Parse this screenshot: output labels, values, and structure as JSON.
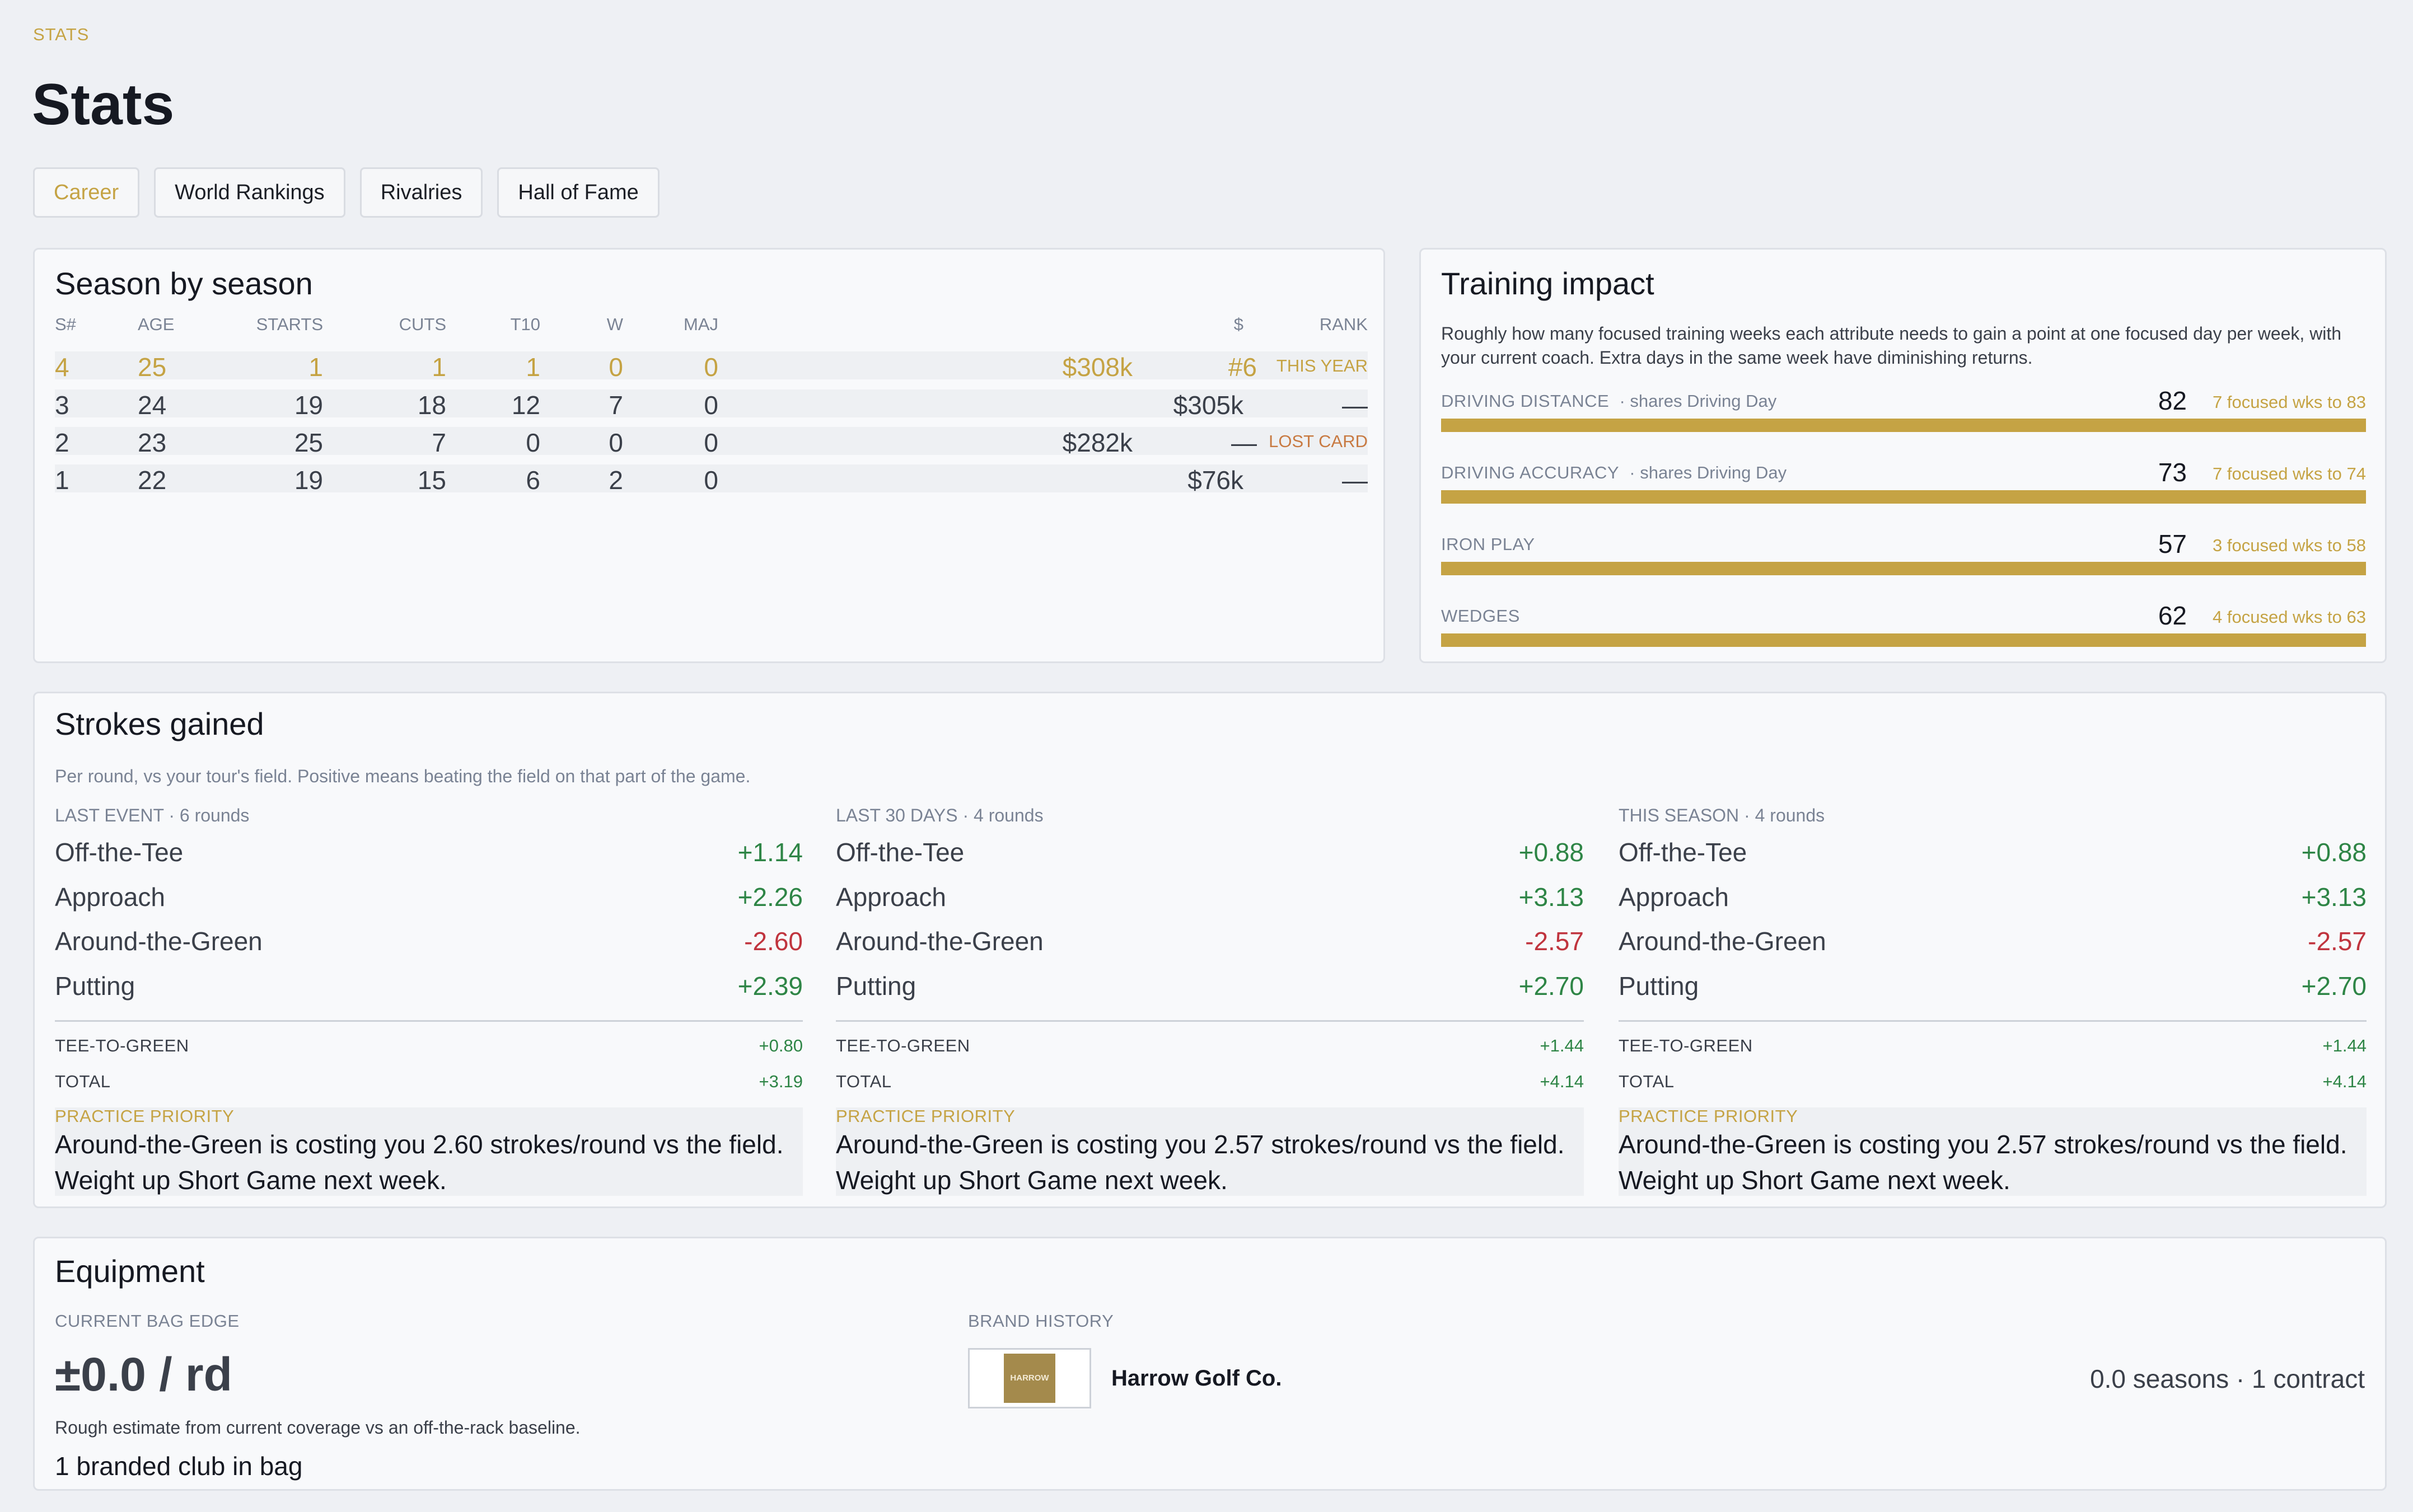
{
  "eyebrow": "STATS",
  "page_title": "Stats",
  "tabs": [
    {
      "label": "Career",
      "active": true
    },
    {
      "label": "World Rankings"
    },
    {
      "label": "Rivalries"
    },
    {
      "label": "Hall of Fame"
    }
  ],
  "season": {
    "title": "Season by season",
    "columns": {
      "season": "S#",
      "age": "AGE",
      "starts": "STARTS",
      "cuts": "CUTS",
      "t10": "T10",
      "w": "W",
      "maj": "MAJ",
      "money": "$",
      "rank": "RANK"
    },
    "rows": [
      {
        "season": "4",
        "age": "25",
        "starts": "1",
        "cuts": "1",
        "t10": "1",
        "w": "0",
        "maj": "0",
        "money": "$308k",
        "rank": "#6",
        "tag": "THIS YEAR"
      },
      {
        "season": "3",
        "age": "24",
        "starts": "19",
        "cuts": "18",
        "t10": "12",
        "w": "7",
        "maj": "0",
        "money": "$305k",
        "rank": "—",
        "tag": ""
      },
      {
        "season": "2",
        "age": "23",
        "starts": "25",
        "cuts": "7",
        "t10": "0",
        "w": "0",
        "maj": "0",
        "money": "$282k",
        "rank": "—",
        "tag": "LOST CARD"
      },
      {
        "season": "1",
        "age": "22",
        "starts": "19",
        "cuts": "15",
        "t10": "6",
        "w": "2",
        "maj": "0",
        "money": "$76k",
        "rank": "—",
        "tag": ""
      }
    ]
  },
  "training": {
    "title": "Training impact",
    "description": "Roughly how many focused training weeks each attribute needs to gain a point at one focused day per week, with your current coach. Extra days in the same week have diminishing returns.",
    "attributes": [
      {
        "name": "DRIVING DISTANCE",
        "share": "·  shares Driving Day",
        "value": "82",
        "note": "7 focused wks to 83",
        "fill": 1.0
      },
      {
        "name": "DRIVING ACCURACY",
        "share": "·  shares Driving Day",
        "value": "73",
        "note": "7 focused wks to 74",
        "fill": 1.0
      },
      {
        "name": "IRON PLAY",
        "share": "",
        "value": "57",
        "note": "3 focused wks to 58",
        "fill": 1.0
      },
      {
        "name": "WEDGES",
        "share": "",
        "value": "62",
        "note": "4 focused wks to 63",
        "fill": 1.0
      }
    ]
  },
  "strokes": {
    "title": "Strokes gained",
    "description": "Per round, vs your tour's field. Positive means beating the field on that part of the game.",
    "labels": {
      "ott": "Off-the-Tee",
      "app": "Approach",
      "arg": "Around-the-Green",
      "putt": "Putting",
      "t2g": "TEE-TO-GREEN",
      "total": "TOTAL",
      "priority": "PRACTICE PRIORITY"
    },
    "columns": [
      {
        "period": "LAST EVENT · 6 rounds",
        "ott": "+1.14",
        "app": "+2.26",
        "arg": "-2.60",
        "putt": "+2.39",
        "t2g": "+0.80",
        "total": "+3.19",
        "priority_text": "Around-the-Green is costing you 2.60 strokes/round vs the field. Weight up Short Game next week."
      },
      {
        "period": "LAST 30 DAYS · 4 rounds",
        "ott": "+0.88",
        "app": "+3.13",
        "arg": "-2.57",
        "putt": "+2.70",
        "t2g": "+1.44",
        "total": "+4.14",
        "priority_text": "Around-the-Green is costing you 2.57 strokes/round vs the field. Weight up Short Game next week."
      },
      {
        "period": "THIS SEASON · 4 rounds",
        "ott": "+0.88",
        "app": "+3.13",
        "arg": "-2.57",
        "putt": "+2.70",
        "t2g": "+1.44",
        "total": "+4.14",
        "priority_text": "Around-the-Green is costing you 2.57 strokes/round vs the field. Weight up Short Game next week."
      }
    ]
  },
  "equipment": {
    "title": "Equipment",
    "edge_label": "CURRENT BAG EDGE",
    "edge_value": "±0.0 / rd",
    "edge_note": "Rough estimate from current coverage vs an off-the-rack baseline.",
    "clubs": "1 branded club in bag",
    "brand_label": "BRAND HISTORY",
    "brand_logo_text": "HARROW",
    "brand_name": "Harrow Golf Co.",
    "brand_meta": "0.0 seasons · 1 contract"
  },
  "colors": {
    "accent": "#c5a344",
    "positive": "#2e8546",
    "negative": "#c0343e",
    "lost": "#c87a42"
  }
}
